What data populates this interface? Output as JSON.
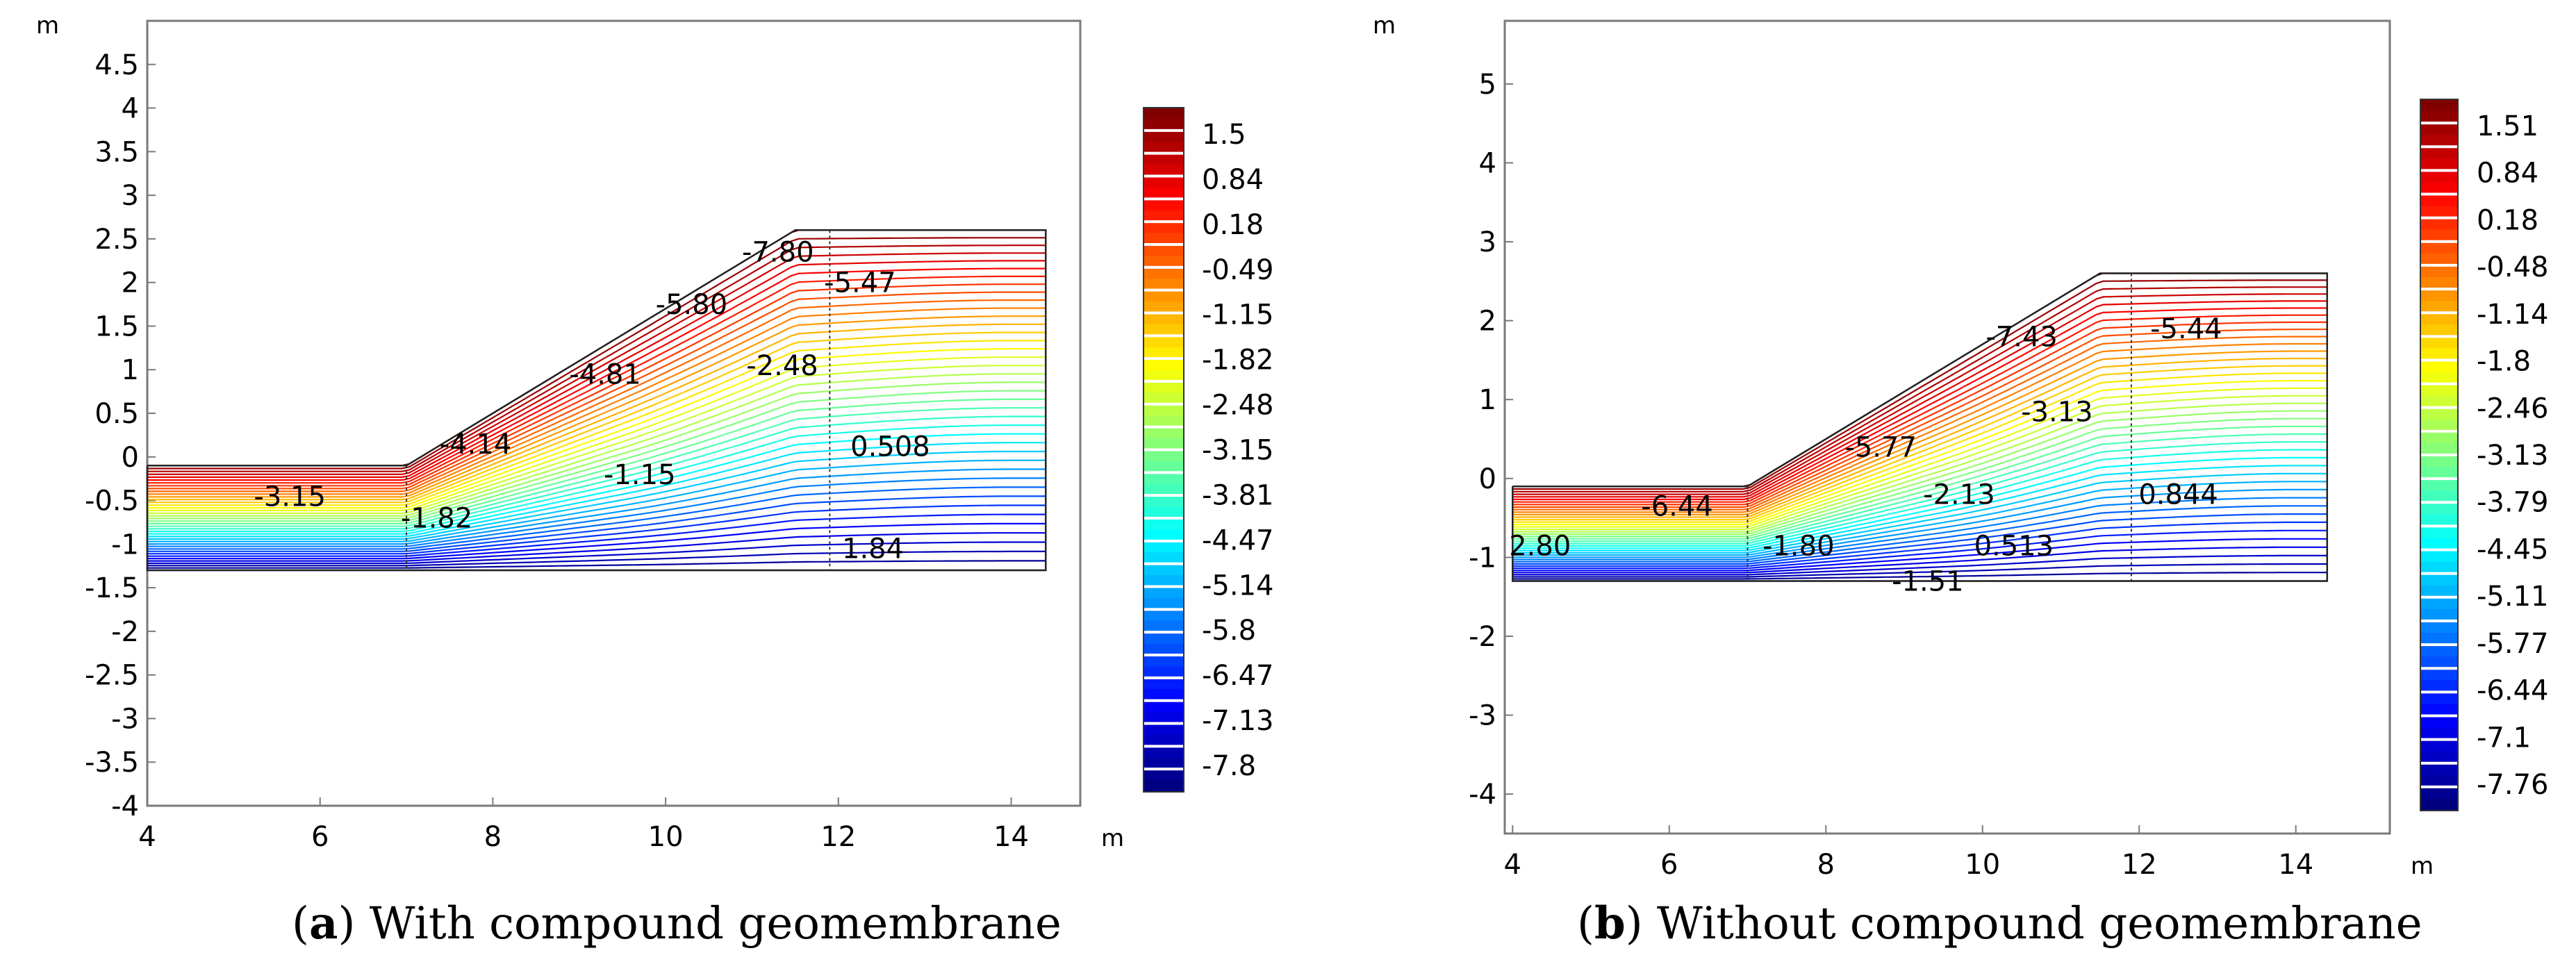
{
  "chart_data": [
    {
      "type": "contour",
      "caption_letter": "a",
      "caption_text": "With compound geomembrane",
      "unit_label": "m",
      "xlim": [
        4,
        14.8
      ],
      "ylim": [
        -4,
        5
      ],
      "x_ticks": [
        "4",
        "6",
        "8",
        "10",
        "12",
        "14"
      ],
      "y_ticks": [
        "4.5",
        "4",
        "3.5",
        "3",
        "2.5",
        "2",
        "1.5",
        "1",
        "0.5",
        "0",
        "-0.5",
        "-1",
        "-1.5",
        "-2",
        "-2.5",
        "-3",
        "-3.5",
        "-4"
      ],
      "y_tick_values": [
        4.5,
        4,
        3.5,
        3,
        2.5,
        2,
        1.5,
        1,
        0.5,
        0,
        -0.5,
        -1,
        -1.5,
        -2,
        -2.5,
        -3,
        -3.5,
        -4
      ],
      "geometry": {
        "toe_x": 7.0,
        "crest_x": 11.9,
        "x_end": 14.4,
        "base_y": -1.3,
        "ground_y": -0.1,
        "crest_y": 2.6
      },
      "contour_labels": [
        {
          "text": "-7.80",
          "x": 11.3,
          "y": 2.35
        },
        {
          "text": "-5.47",
          "x": 12.25,
          "y": 2.0
        },
        {
          "text": "-5.80",
          "x": 10.3,
          "y": 1.75
        },
        {
          "text": "-2.48",
          "x": 11.35,
          "y": 1.05
        },
        {
          "text": "-4.81",
          "x": 9.3,
          "y": 0.95
        },
        {
          "text": "-4.14",
          "x": 7.8,
          "y": 0.15
        },
        {
          "text": "0.508",
          "x": 12.6,
          "y": 0.12
        },
        {
          "text": "-1.15",
          "x": 9.7,
          "y": -0.2
        },
        {
          "text": "-3.15",
          "x": 5.65,
          "y": -0.45
        },
        {
          "text": "-1.82",
          "x": 7.35,
          "y": -0.7
        },
        {
          "text": "1.84",
          "x": 12.4,
          "y": -1.05
        }
      ],
      "colorbar_labels": [
        "1.5",
        "0.84",
        "0.18",
        "-0.49",
        "-1.15",
        "-1.82",
        "-2.48",
        "-3.15",
        "-3.81",
        "-4.47",
        "-5.14",
        "-5.8",
        "-6.47",
        "-7.13",
        "-7.8"
      ]
    },
    {
      "type": "contour",
      "caption_letter": "b",
      "caption_text": "Without compound geomembrane",
      "unit_label": "m",
      "xlim": [
        3.9,
        15.2
      ],
      "ylim": [
        -4.5,
        5.8
      ],
      "x_ticks": [
        "4",
        "6",
        "8",
        "10",
        "12",
        "14"
      ],
      "y_ticks": [
        "5",
        "4",
        "3",
        "2",
        "1",
        "0",
        "-1",
        "-2",
        "-3",
        "-4"
      ],
      "y_tick_values": [
        5,
        4,
        3,
        2,
        1,
        0,
        -1,
        -2,
        -3,
        -4
      ],
      "geometry": {
        "toe_x": 7.0,
        "crest_x": 11.9,
        "x_end": 14.4,
        "base_y": -1.3,
        "ground_y": -0.1,
        "crest_y": 2.6
      },
      "contour_labels": [
        {
          "text": "-7.43",
          "x": 10.5,
          "y": 1.8
        },
        {
          "text": "-5.44",
          "x": 12.6,
          "y": 1.9
        },
        {
          "text": "-3.13",
          "x": 10.95,
          "y": 0.85
        },
        {
          "text": "-5.77",
          "x": 8.7,
          "y": 0.4
        },
        {
          "text": "-2.13",
          "x": 9.7,
          "y": -0.2
        },
        {
          "text": "0.844",
          "x": 12.5,
          "y": -0.2
        },
        {
          "text": "-6.44",
          "x": 6.1,
          "y": -0.35
        },
        {
          "text": "2.80",
          "x": 4.35,
          "y": -0.85
        },
        {
          "text": "-1.80",
          "x": 7.65,
          "y": -0.85
        },
        {
          "text": "0.513",
          "x": 10.4,
          "y": -0.85
        },
        {
          "text": "-1.51",
          "x": 9.3,
          "y": -1.3
        }
      ],
      "colorbar_labels": [
        "1.51",
        "0.84",
        "0.18",
        "-0.48",
        "-1.14",
        "-1.8",
        "-2.46",
        "-3.13",
        "-3.79",
        "-4.45",
        "-5.11",
        "-5.77",
        "-6.44",
        "-7.1",
        "-7.76"
      ]
    }
  ]
}
